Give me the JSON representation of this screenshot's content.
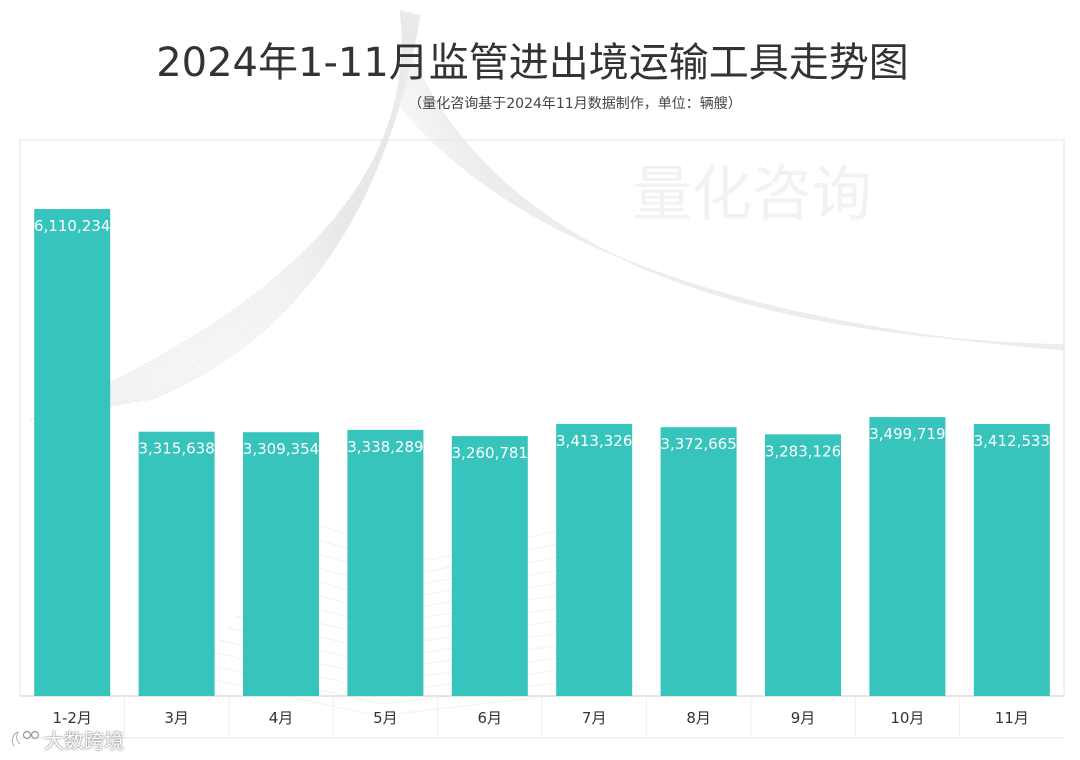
{
  "title": "2024年1-11月监管进出境运输工具走势图",
  "subtitle": "（量化咨询基于2024年11月数据制作，单位：辆艘）",
  "watermark_center": "量化咨询",
  "watermark_bottom": "大数跨境",
  "colors": {
    "bar": "#36c4bd",
    "label": "#ffffff",
    "axis_text": "#333333",
    "title": "#333333"
  },
  "chart_data": {
    "type": "bar",
    "title": "2024年1-11月监管进出境运输工具走势图",
    "subtitle": "（量化咨询基于2024年11月数据制作，单位：辆艘）",
    "categories": [
      "1-2月",
      "3月",
      "4月",
      "5月",
      "6月",
      "7月",
      "8月",
      "9月",
      "10月",
      "11月"
    ],
    "values": [
      6110234,
      3315638,
      3309354,
      3338289,
      3260781,
      3413326,
      3372665,
      3283126,
      3499719,
      3412533
    ],
    "value_labels": [
      "6,110,234",
      "3,315,638",
      "3,309,354",
      "3,338,289",
      "3,260,781",
      "3,413,326",
      "3,372,665",
      "3,283,126",
      "3,499,719",
      "3,412,533"
    ],
    "xlabel": "",
    "ylabel": "",
    "ylim": [
      0,
      7000000
    ],
    "grid": false,
    "legend": "none"
  }
}
